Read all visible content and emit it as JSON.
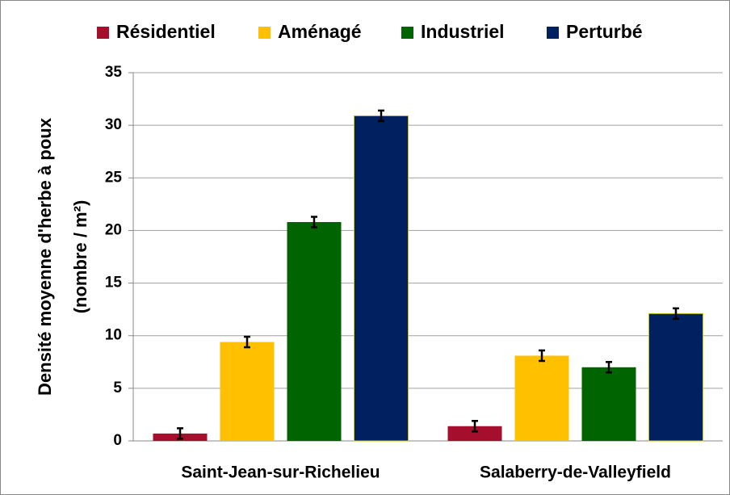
{
  "chart_data": {
    "type": "bar",
    "y_label": [
      "Densité moyenne d'herbe à poux",
      "(nombre / m²)"
    ],
    "categories": [
      "Saint-Jean-sur-Richelieu",
      "Salaberry-de-Valleyfield"
    ],
    "series": [
      {
        "name": "Résidentiel",
        "color": "#a50f2d",
        "values": [
          0.7,
          1.4
        ],
        "errors": [
          0.5,
          0.5
        ]
      },
      {
        "name": "Aménagé",
        "color": "#ffc000",
        "values": [
          9.4,
          8.1
        ],
        "errors": [
          0.5,
          0.5
        ]
      },
      {
        "name": "Industriel",
        "color": "#006400",
        "values": [
          20.8,
          7.0
        ],
        "errors": [
          0.5,
          0.5
        ]
      },
      {
        "name": "Perturbé",
        "color": "#002060",
        "values": [
          30.9,
          12.1
        ],
        "errors": [
          0.5,
          0.5
        ]
      }
    ],
    "ylim": [
      0,
      35
    ],
    "yticks": [
      0,
      5,
      10,
      15,
      20,
      25,
      30,
      35
    ],
    "grid": true,
    "legend": "top"
  }
}
